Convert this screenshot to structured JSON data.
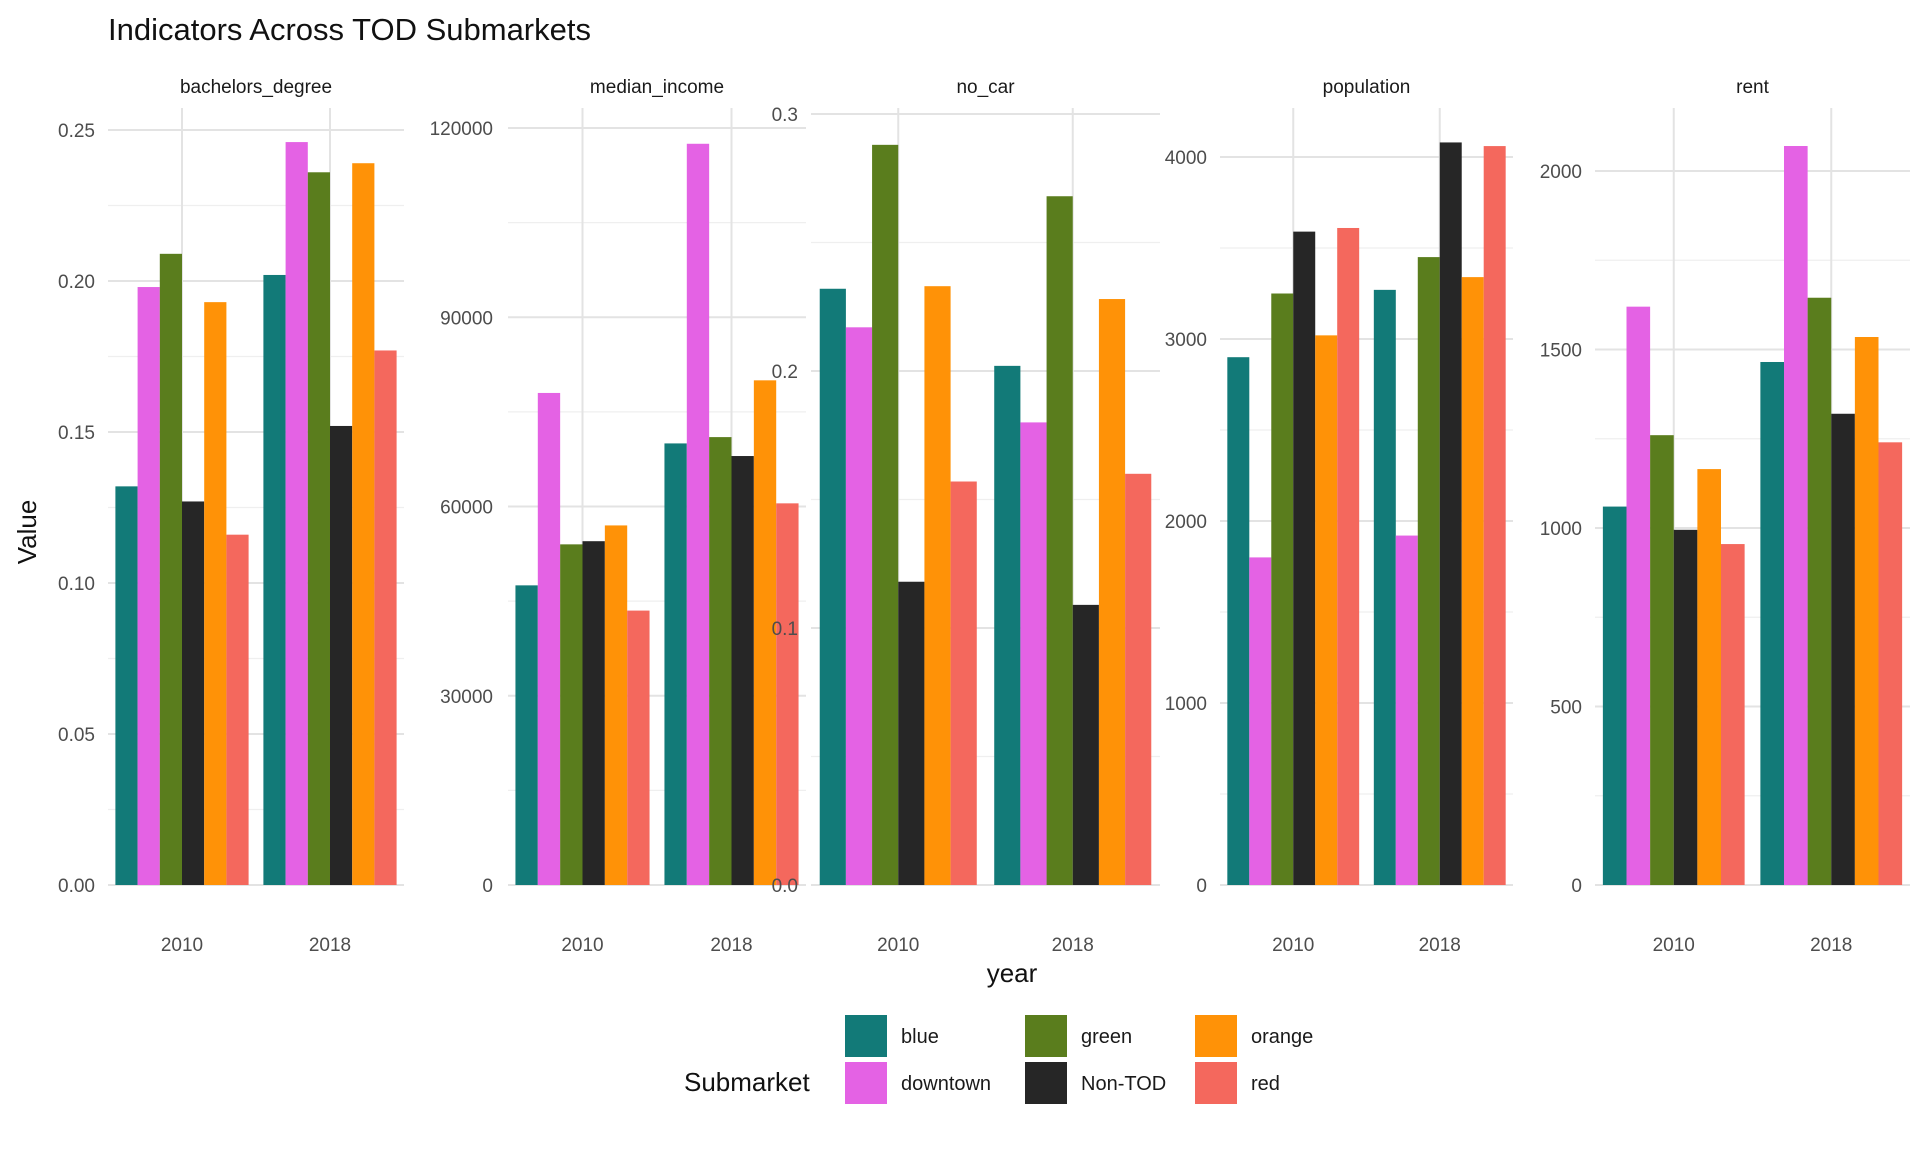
{
  "chart_data": {
    "type": "bar",
    "title": "Indicators Across TOD Submarkets",
    "xlabel": "year",
    "ylabel": "Value",
    "categories": [
      "2010",
      "2018"
    ],
    "legend": {
      "title": "Submarket",
      "placement": "bottom",
      "entries": [
        {
          "name": "blue",
          "color": "#127A78"
        },
        {
          "name": "downtown",
          "color": "#E462E4"
        },
        {
          "name": "green",
          "color": "#5A7D1D"
        },
        {
          "name": "Non-TOD",
          "color": "#262626"
        },
        {
          "name": "orange",
          "color": "#FF9207"
        },
        {
          "name": "red",
          "color": "#F4685D"
        }
      ]
    },
    "series_order": [
      "blue",
      "downtown",
      "green",
      "Non-TOD",
      "orange",
      "red"
    ],
    "grid": true,
    "panels": [
      {
        "label": "bachelors_degree",
        "ylim": [
          0,
          0.25
        ],
        "yticks": [
          "0.00",
          "0.05",
          "0.10",
          "0.15",
          "0.20",
          "0.25"
        ],
        "ytick_values": [
          0,
          0.05,
          0.1,
          0.15,
          0.2,
          0.25
        ],
        "values": {
          "2010": [
            0.132,
            0.198,
            0.209,
            0.127,
            0.193,
            0.116
          ],
          "2018": [
            0.202,
            0.246,
            0.236,
            0.152,
            0.239,
            0.177
          ]
        }
      },
      {
        "label": "median_income",
        "ylim": [
          0,
          120000
        ],
        "yticks": [
          "0",
          "30000",
          "60000",
          "90000",
          "120000"
        ],
        "ytick_values": [
          0,
          30000,
          60000,
          90000,
          120000
        ],
        "values": {
          "2010": [
            47500,
            78000,
            54000,
            54500,
            57000,
            43500
          ],
          "2018": [
            70000,
            117500,
            71000,
            68000,
            80000,
            60500
          ]
        }
      },
      {
        "label": "no_car",
        "ylim": [
          0,
          0.3
        ],
        "yticks": [
          "0.0",
          "0.1",
          "0.2",
          "0.3"
        ],
        "ytick_values": [
          0,
          0.1,
          0.2,
          0.3
        ],
        "values": {
          "2010": [
            0.232,
            0.217,
            0.288,
            0.118,
            0.233,
            0.157
          ],
          "2018": [
            0.202,
            0.18,
            0.268,
            0.109,
            0.228,
            0.16
          ]
        }
      },
      {
        "label": "population",
        "ylim": [
          0,
          4000
        ],
        "yticks": [
          "0",
          "1000",
          "2000",
          "3000",
          "4000"
        ],
        "ytick_values": [
          0,
          1000,
          2000,
          3000,
          4000
        ],
        "values": {
          "2010": [
            2900,
            1800,
            3250,
            3590,
            3020,
            3610
          ],
          "2018": [
            3270,
            1920,
            3450,
            4080,
            3340,
            4060
          ]
        }
      },
      {
        "label": "rent",
        "ylim": [
          0,
          2000
        ],
        "yticks": [
          "0",
          "500",
          "1000",
          "1500",
          "2000"
        ],
        "ytick_values": [
          0,
          500,
          1000,
          1500,
          2000
        ],
        "values": {
          "2010": [
            1060,
            1620,
            1260,
            995,
            1165,
            955
          ],
          "2018": [
            1465,
            2070,
            1645,
            1320,
            1535,
            1240
          ]
        }
      }
    ]
  }
}
